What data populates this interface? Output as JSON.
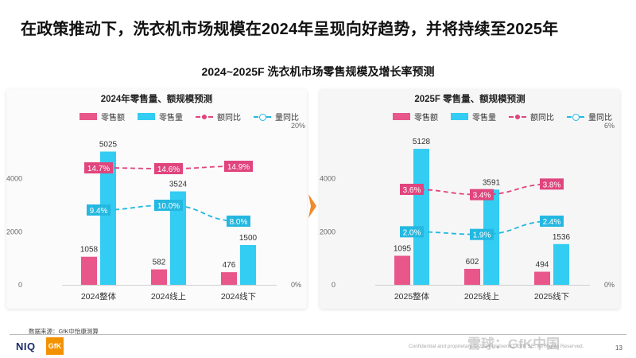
{
  "headline": "在政策推动下，洗衣机市场规模在2024年呈现向好趋势，并将持续至2025年",
  "subtitle": "2024~2025F 洗衣机市场零售规模及增长率预测",
  "colors": {
    "amount": "#e8568a",
    "volume": "#33ccf2",
    "amount_yoy": "#e0457d",
    "volume_yoy": "#24b8e0",
    "arrow": "#f08a2a"
  },
  "legend": {
    "amount": "零售额",
    "volume": "零售量",
    "amount_yoy": "额同比",
    "volume_yoy": "量同比"
  },
  "chart_data": [
    {
      "type": "bar",
      "title": "2024年零售量、额规模预测",
      "categories": [
        "2024整体",
        "2024线上",
        "2024线下"
      ],
      "series": [
        {
          "name": "零售额",
          "axis": "left",
          "values": [
            1058,
            582,
            476
          ]
        },
        {
          "name": "零售量",
          "axis": "left",
          "values": [
            5025,
            3524,
            1500
          ]
        },
        {
          "name": "额同比",
          "type": "line",
          "axis": "right",
          "values": [
            14.7,
            14.6,
            14.9
          ],
          "labels": [
            "14.7%",
            "14.6%",
            "14.9%"
          ]
        },
        {
          "name": "量同比",
          "type": "line",
          "axis": "right",
          "values": [
            9.4,
            10.0,
            8.0
          ],
          "labels": [
            "9.4%",
            "10.0%",
            "8.0%"
          ]
        }
      ],
      "yticks_left": [
        "0",
        "2000",
        "4000"
      ],
      "yticks_right": [
        "0%",
        "20%"
      ],
      "ylim_left": [
        0,
        6000
      ],
      "ylim_right": [
        0,
        20
      ]
    },
    {
      "type": "bar",
      "title": "2025F 零售量、额规模预测",
      "categories": [
        "2025整体",
        "2025线上",
        "2025线下"
      ],
      "series": [
        {
          "name": "零售额",
          "axis": "left",
          "values": [
            1095,
            602,
            494
          ]
        },
        {
          "name": "零售量",
          "axis": "left",
          "values": [
            5128,
            3591,
            1536
          ]
        },
        {
          "name": "额同比",
          "type": "line",
          "axis": "right",
          "values": [
            3.6,
            3.4,
            3.8
          ],
          "labels": [
            "3.6%",
            "3.4%",
            "3.8%"
          ]
        },
        {
          "name": "量同比",
          "type": "line",
          "axis": "right",
          "values": [
            2.0,
            1.9,
            2.4
          ],
          "labels": [
            "2.0%",
            "1.9%",
            "2.4%"
          ]
        }
      ],
      "yticks_left": [
        "0",
        "2000",
        "4000"
      ],
      "yticks_right": [
        "0%",
        "6%"
      ],
      "ylim_left": [
        0,
        6000
      ],
      "ylim_right": [
        0,
        6
      ]
    }
  ],
  "source": "数据来源：GfK中怡康测算",
  "footer": {
    "niq_logo": "NIQ",
    "gfk_logo": "GfK",
    "confidential": "Confidential and proprietary © 2024 NielsenIQ. GfK SE. All Rights Reserved.",
    "watermark": "雪球：GfK中国",
    "page_number": "13"
  }
}
